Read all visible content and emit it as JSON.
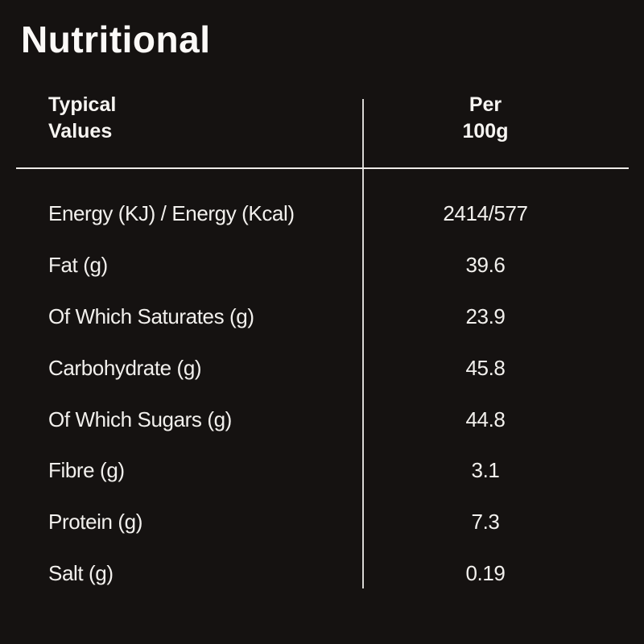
{
  "page": {
    "title": "Nutritional"
  },
  "table": {
    "header": {
      "left": "Typical\nValues",
      "right": "Per\n100g"
    },
    "rows": [
      {
        "label": "Energy (KJ) / Energy (Kcal)",
        "value": "2414/577"
      },
      {
        "label": "Fat (g)",
        "value": "39.6"
      },
      {
        "label": "Of Which Saturates (g)",
        "value": "23.9"
      },
      {
        "label": "Carbohydrate (g)",
        "value": "45.8"
      },
      {
        "label": "Of Which Sugars (g)",
        "value": "44.8"
      },
      {
        "label": "Fibre (g)",
        "value": "3.1"
      },
      {
        "label": "Protein (g)",
        "value": "7.3"
      },
      {
        "label": "Salt (g)",
        "value": "0.19"
      }
    ]
  },
  "colors": {
    "background": "#151211",
    "text": "#f2f0ed",
    "column_divider": "#d8d6d3",
    "header_rule": "#edebe8"
  }
}
